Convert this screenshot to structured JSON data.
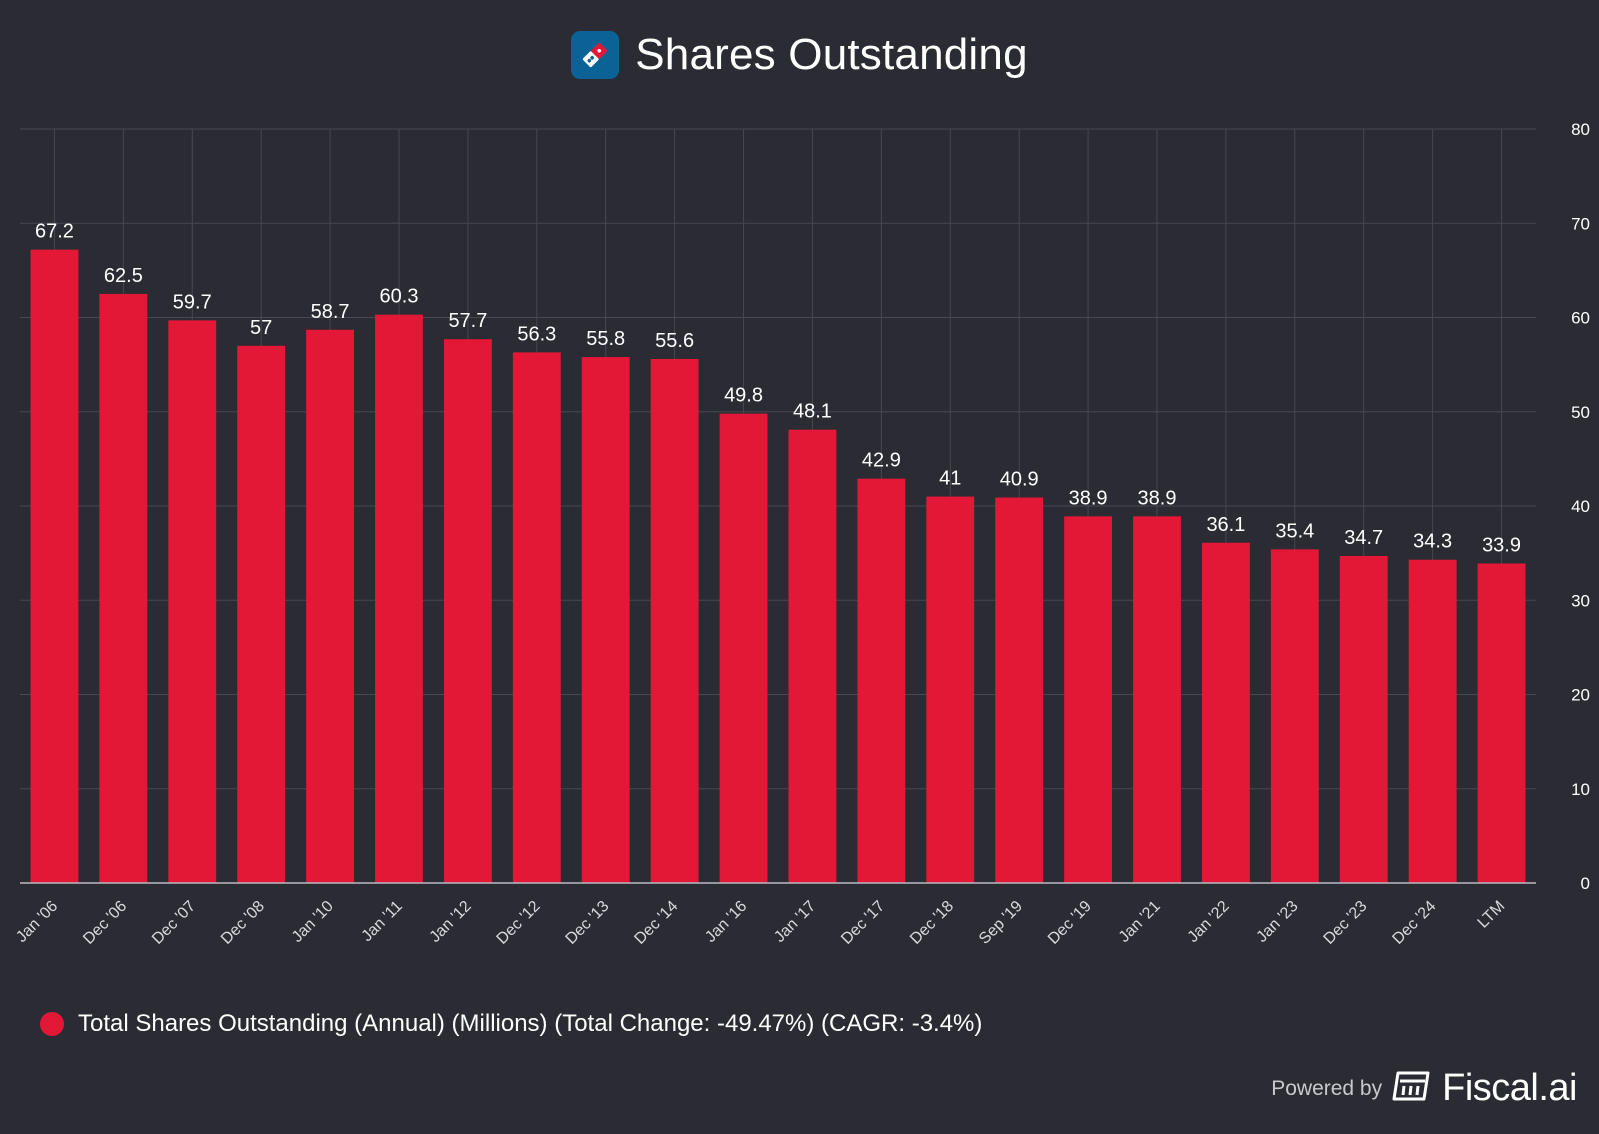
{
  "chart_data": {
    "type": "bar",
    "title": "Shares Outstanding",
    "categories": [
      "Jan '06",
      "Dec '06",
      "Dec '07",
      "Dec '08",
      "Jan '10",
      "Jan '11",
      "Jan '12",
      "Dec '12",
      "Dec '13",
      "Dec '14",
      "Jan '16",
      "Jan '17",
      "Dec '17",
      "Dec '18",
      "Sep '19",
      "Dec '19",
      "Jan '21",
      "Jan '22",
      "Jan '23",
      "Dec '23",
      "Dec '24",
      "LTM"
    ],
    "series": [
      {
        "name": "Total Shares Outstanding (Annual) (Millions) (Total Change: -49.47%) (CAGR: -3.4%)",
        "color": "#e31837",
        "values": [
          67.2,
          62.5,
          59.7,
          57,
          58.7,
          60.3,
          57.7,
          56.3,
          55.8,
          55.6,
          49.8,
          48.1,
          42.9,
          41,
          40.9,
          38.9,
          38.9,
          36.1,
          35.4,
          34.7,
          34.3,
          33.9
        ]
      }
    ],
    "ylim": [
      0,
      80
    ],
    "yticks": [
      0,
      10,
      20,
      30,
      40,
      50,
      60,
      70,
      80
    ],
    "y_axis_side": "right",
    "grid": true,
    "legend_position": "bottom-left",
    "xlabel": "",
    "ylabel": ""
  },
  "header": {
    "logo_icon": "dominos-logo-icon"
  },
  "footer": {
    "powered_by": "Powered by",
    "brand": "Fiscal.ai",
    "brand_icon": "fiscal-ai-logo-icon"
  },
  "colors": {
    "background": "#2a2b33",
    "bar": "#e31837",
    "grid": "#464852"
  }
}
